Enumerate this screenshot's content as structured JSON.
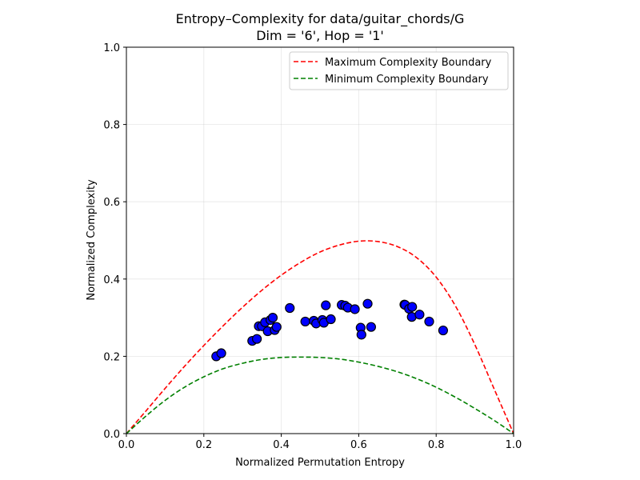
{
  "chart_data": {
    "type": "scatter",
    "title": "Entropy–Complexity for data/guitar_chords/G",
    "subtitle": "Dim = '6', Hop = '1'",
    "xlabel": "Normalized Permutation Entropy",
    "ylabel": "Normalized Complexity",
    "xlim": [
      0.0,
      1.0
    ],
    "ylim": [
      0.0,
      1.0
    ],
    "xticks": [
      0.0,
      0.2,
      0.4,
      0.6,
      0.8,
      1.0
    ],
    "yticks": [
      0.0,
      0.2,
      0.4,
      0.6,
      0.8,
      1.0
    ],
    "xtick_labels": [
      "0.0",
      "0.2",
      "0.4",
      "0.6",
      "0.8",
      "1.0"
    ],
    "ytick_labels": [
      "0.0",
      "0.2",
      "0.4",
      "0.6",
      "0.8",
      "1.0"
    ],
    "grid": true,
    "legend_position": "top-right",
    "series": [
      {
        "name": "Maximum Complexity Boundary",
        "kind": "line",
        "style": "dashed",
        "color": "#ff0000",
        "x": [
          0.0,
          0.05,
          0.1,
          0.15,
          0.2,
          0.25,
          0.3,
          0.35,
          0.4,
          0.45,
          0.5,
          0.55,
          0.6,
          0.65,
          0.7,
          0.75,
          0.8,
          0.85,
          0.9,
          0.95,
          1.0
        ],
        "y": [
          0.0,
          0.058,
          0.117,
          0.174,
          0.228,
          0.279,
          0.327,
          0.371,
          0.41,
          0.443,
          0.47,
          0.488,
          0.498,
          0.497,
          0.484,
          0.455,
          0.405,
          0.33,
          0.23,
          0.115,
          0.0
        ]
      },
      {
        "name": "Minimum Complexity Boundary",
        "kind": "line",
        "style": "dashed",
        "color": "#008000",
        "x": [
          0.0,
          0.05,
          0.1,
          0.15,
          0.2,
          0.25,
          0.3,
          0.35,
          0.4,
          0.45,
          0.5,
          0.55,
          0.6,
          0.65,
          0.7,
          0.75,
          0.8,
          0.85,
          0.9,
          0.95,
          1.0
        ],
        "y": [
          0.0,
          0.045,
          0.086,
          0.12,
          0.147,
          0.168,
          0.182,
          0.192,
          0.197,
          0.198,
          0.197,
          0.193,
          0.185,
          0.174,
          0.16,
          0.142,
          0.12,
          0.094,
          0.065,
          0.034,
          0.0
        ]
      },
      {
        "kind": "scatter",
        "color": "#0000ff",
        "edge_color": "#000000",
        "points": [
          [
            0.232,
            0.2
          ],
          [
            0.245,
            0.208
          ],
          [
            0.325,
            0.24
          ],
          [
            0.337,
            0.245
          ],
          [
            0.342,
            0.278
          ],
          [
            0.35,
            0.278
          ],
          [
            0.358,
            0.288
          ],
          [
            0.365,
            0.265
          ],
          [
            0.372,
            0.294
          ],
          [
            0.378,
            0.3
          ],
          [
            0.383,
            0.268
          ],
          [
            0.388,
            0.276
          ],
          [
            0.422,
            0.325
          ],
          [
            0.462,
            0.29
          ],
          [
            0.484,
            0.292
          ],
          [
            0.49,
            0.285
          ],
          [
            0.506,
            0.294
          ],
          [
            0.51,
            0.287
          ],
          [
            0.515,
            0.332
          ],
          [
            0.528,
            0.296
          ],
          [
            0.556,
            0.333
          ],
          [
            0.565,
            0.331
          ],
          [
            0.572,
            0.326
          ],
          [
            0.59,
            0.322
          ],
          [
            0.605,
            0.274
          ],
          [
            0.607,
            0.256
          ],
          [
            0.623,
            0.336
          ],
          [
            0.632,
            0.276
          ],
          [
            0.718,
            0.334
          ],
          [
            0.72,
            0.333
          ],
          [
            0.73,
            0.323
          ],
          [
            0.738,
            0.328
          ],
          [
            0.737,
            0.302
          ],
          [
            0.757,
            0.308
          ],
          [
            0.782,
            0.29
          ],
          [
            0.818,
            0.267
          ]
        ]
      }
    ]
  }
}
